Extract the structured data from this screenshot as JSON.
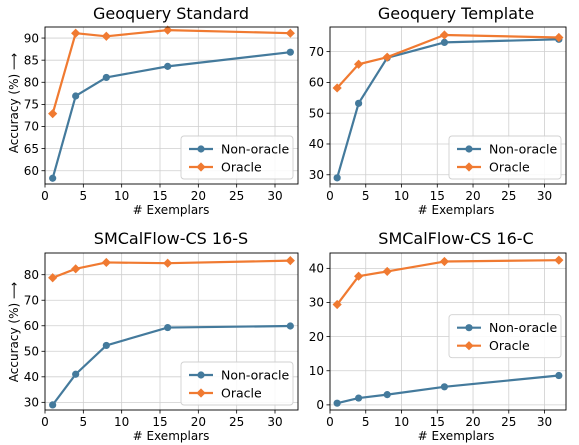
{
  "figure": {
    "ylabel": "Accuracy (%) ⟶",
    "xlabel": "# Exemplars"
  },
  "colors": {
    "non_oracle": "#447a9c",
    "oracle": "#f07a31",
    "grid": "#cfcfcf"
  },
  "chart_data": [
    {
      "type": "line",
      "title": "Geoquery Standard",
      "xlabel": "# Exemplars",
      "ylabel": "Accuracy (%) ⟶",
      "xlim": [
        0,
        33
      ],
      "ylim": [
        57,
        92.5
      ],
      "xticks": [
        0,
        5,
        10,
        15,
        20,
        25,
        30
      ],
      "yticks": [
        60,
        65,
        70,
        75,
        80,
        85,
        90
      ],
      "grid": true,
      "legend_position": "bottom-right",
      "series": [
        {
          "name": "Non-oracle",
          "marker": "circle",
          "x": [
            1,
            4,
            8,
            16,
            32
          ],
          "y": [
            58.3,
            76.9,
            81.1,
            83.6,
            86.8
          ]
        },
        {
          "name": "Oracle",
          "marker": "diamond",
          "x": [
            1,
            4,
            8,
            16,
            32
          ],
          "y": [
            72.9,
            91.1,
            90.4,
            91.8,
            91.1
          ]
        }
      ]
    },
    {
      "type": "line",
      "title": "Geoquery Template",
      "xlabel": "# Exemplars",
      "ylabel": "",
      "xlim": [
        0,
        33
      ],
      "ylim": [
        27,
        78
      ],
      "xticks": [
        0,
        5,
        10,
        15,
        20,
        25,
        30
      ],
      "yticks": [
        30,
        40,
        50,
        60,
        70
      ],
      "grid": true,
      "legend_position": "bottom-right",
      "series": [
        {
          "name": "Non-oracle",
          "marker": "circle",
          "x": [
            1,
            4,
            8,
            16,
            32
          ],
          "y": [
            29.0,
            53.2,
            68.0,
            73.0,
            74.0
          ]
        },
        {
          "name": "Oracle",
          "marker": "diamond",
          "x": [
            1,
            4,
            8,
            16,
            32
          ],
          "y": [
            58.2,
            65.9,
            68.2,
            75.4,
            74.6
          ]
        }
      ]
    },
    {
      "type": "line",
      "title": "SMCalFlow-CS 16-S",
      "xlabel": "# Exemplars",
      "ylabel": "Accuracy (%) ⟶",
      "xlim": [
        0,
        33
      ],
      "ylim": [
        27,
        88.5
      ],
      "xticks": [
        0,
        5,
        10,
        15,
        20,
        25,
        30
      ],
      "yticks": [
        30,
        40,
        50,
        60,
        70,
        80
      ],
      "grid": true,
      "legend_position": "bottom-right",
      "series": [
        {
          "name": "Non-oracle",
          "marker": "circle",
          "x": [
            1,
            4,
            8,
            16,
            32
          ],
          "y": [
            29.0,
            41.0,
            52.3,
            59.3,
            59.9
          ]
        },
        {
          "name": "Oracle",
          "marker": "diamond",
          "x": [
            1,
            4,
            8,
            16,
            32
          ],
          "y": [
            78.8,
            82.3,
            84.8,
            84.5,
            85.5
          ]
        }
      ]
    },
    {
      "type": "line",
      "title": "SMCalFlow-CS 16-C",
      "xlabel": "# Exemplars",
      "ylabel": "",
      "xlim": [
        0,
        33
      ],
      "ylim": [
        -1.5,
        44.5
      ],
      "xticks": [
        0,
        5,
        10,
        15,
        20,
        25,
        30
      ],
      "yticks": [
        0,
        10,
        20,
        30,
        40
      ],
      "grid": true,
      "legend_position": "center-right",
      "series": [
        {
          "name": "Non-oracle",
          "marker": "circle",
          "x": [
            1,
            4,
            8,
            16,
            32
          ],
          "y": [
            0.5,
            2.0,
            3.0,
            5.3,
            8.6
          ]
        },
        {
          "name": "Oracle",
          "marker": "diamond",
          "x": [
            1,
            4,
            8,
            16,
            32
          ],
          "y": [
            29.4,
            37.7,
            39.1,
            42.0,
            42.4
          ]
        }
      ]
    }
  ]
}
